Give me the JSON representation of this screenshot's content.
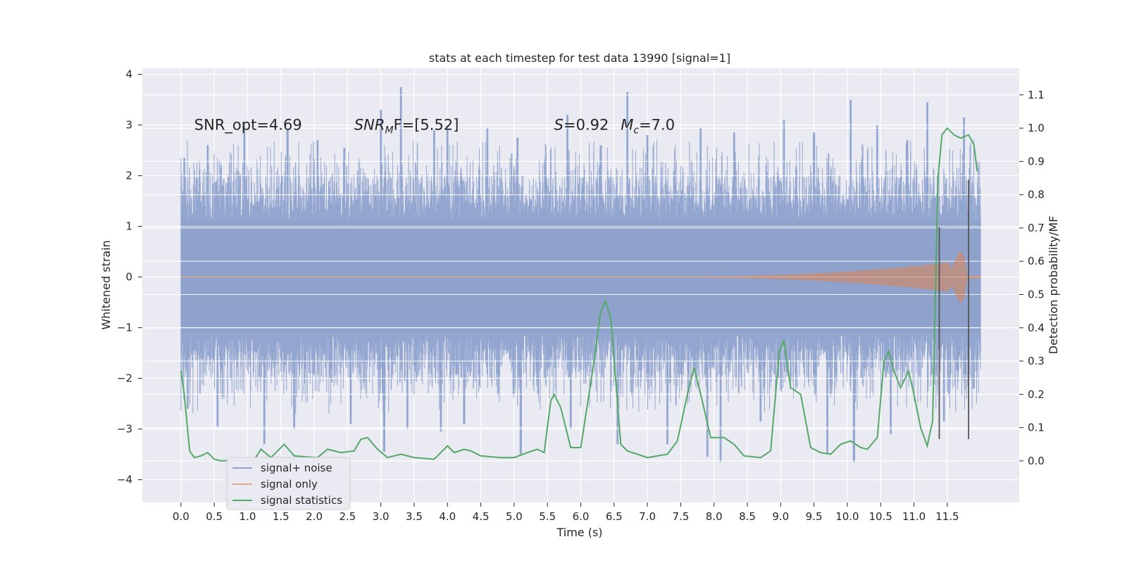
{
  "chart_data": {
    "type": "line",
    "title": "stats at each timestep for test data 13990 [signal=1]",
    "xlabel": "Time (s)",
    "ylabel": "Whitened strain",
    "ylabel_right": "Detection probability/MF",
    "xlim": [
      -0.58,
      12.58
    ],
    "ylim": [
      -4.45,
      4.12
    ],
    "ylim_right": [
      -0.125,
      1.18
    ],
    "x_ticks": [
      0.0,
      0.5,
      1.0,
      1.5,
      2.0,
      2.5,
      3.0,
      3.5,
      4.0,
      4.5,
      5.0,
      5.5,
      6.0,
      6.5,
      7.0,
      7.5,
      8.0,
      8.5,
      9.0,
      9.5,
      10.0,
      10.5,
      11.0,
      11.5
    ],
    "x_tick_labels": [
      "0.0",
      "0.5",
      "1.0",
      "1.5",
      "2.0",
      "2.5",
      "3.0",
      "3.5",
      "4.0",
      "4.5",
      "5.0",
      "5.5",
      "6.0",
      "6.5",
      "7.0",
      "7.5",
      "8.0",
      "8.5",
      "9.0",
      "9.5",
      "10.0",
      "10.5",
      "11.0",
      "11.5"
    ],
    "y_ticks": [
      4,
      3,
      2,
      1,
      0,
      -1,
      -2,
      -3,
      -4
    ],
    "y_tick_labels": [
      "4",
      "3",
      "2",
      "1",
      "0",
      "−1",
      "−2",
      "−3",
      "−4"
    ],
    "y_right_ticks": [
      1.1,
      1.0,
      0.9,
      0.8,
      0.7,
      0.6,
      0.5,
      0.4,
      0.3,
      0.2,
      0.1,
      0.0
    ],
    "y_right_tick_labels": [
      "1.1",
      "1.0",
      "0.9",
      "0.8",
      "0.7",
      "0.6",
      "0.5",
      "0.4",
      "0.3",
      "0.2",
      "0.1",
      "0.0"
    ],
    "duration_s": 12.0,
    "noise_envelope": {
      "name": "signal+ noise",
      "typical_abs": 1.1,
      "peaks_up": [
        [
          0.05,
          2.35
        ],
        [
          0.4,
          2.6
        ],
        [
          0.95,
          3.05
        ],
        [
          1.6,
          2.9
        ],
        [
          2.05,
          2.7
        ],
        [
          2.45,
          2.55
        ],
        [
          3.0,
          3.3
        ],
        [
          3.3,
          3.75
        ],
        [
          3.8,
          2.9
        ],
        [
          4.0,
          3.0
        ],
        [
          4.6,
          2.95
        ],
        [
          5.05,
          2.75
        ],
        [
          5.8,
          3.2
        ],
        [
          6.3,
          2.6
        ],
        [
          6.7,
          3.65
        ],
        [
          7.0,
          2.8
        ],
        [
          7.8,
          2.95
        ],
        [
          8.3,
          2.85
        ],
        [
          9.05,
          3.1
        ],
        [
          9.5,
          2.85
        ],
        [
          10.05,
          3.5
        ],
        [
          10.45,
          3.0
        ],
        [
          10.9,
          2.7
        ],
        [
          11.2,
          3.45
        ],
        [
          11.75,
          3.15
        ]
      ],
      "peaks_down": [
        [
          0.1,
          -2.6
        ],
        [
          0.55,
          -2.95
        ],
        [
          1.25,
          -3.3
        ],
        [
          1.7,
          -3.0
        ],
        [
          2.55,
          -2.9
        ],
        [
          3.05,
          -3.45
        ],
        [
          3.4,
          -3.0
        ],
        [
          3.9,
          -3.05
        ],
        [
          4.25,
          -2.9
        ],
        [
          5.1,
          -3.5
        ],
        [
          5.85,
          -3.0
        ],
        [
          6.55,
          -3.3
        ],
        [
          7.3,
          -3.3
        ],
        [
          7.9,
          -3.55
        ],
        [
          8.1,
          -3.65
        ],
        [
          8.7,
          -2.85
        ],
        [
          9.7,
          -3.5
        ],
        [
          10.1,
          -3.65
        ],
        [
          10.65,
          -3.1
        ],
        [
          11.45,
          -2.85
        ],
        [
          11.9,
          -2.2
        ]
      ],
      "color": "#8ea2cc"
    },
    "signal_only": {
      "name": "signal only",
      "start_s": 7.5,
      "peak_s": 11.7,
      "peak_amplitude": 0.55,
      "color": "#dd8452"
    },
    "signal_statistics": {
      "name": "signal statistics",
      "axis": "right",
      "color": "#55a868",
      "points": [
        [
          0.0,
          0.27
        ],
        [
          0.05,
          0.2
        ],
        [
          0.13,
          0.03
        ],
        [
          0.2,
          0.01
        ],
        [
          0.3,
          0.015
        ],
        [
          0.4,
          0.025
        ],
        [
          0.5,
          0.005
        ],
        [
          0.6,
          0.0
        ],
        [
          0.8,
          0.002
        ],
        [
          1.0,
          0.0
        ],
        [
          1.1,
          0.003
        ],
        [
          1.2,
          0.035
        ],
        [
          1.35,
          0.01
        ],
        [
          1.55,
          0.05
        ],
        [
          1.7,
          0.015
        ],
        [
          1.9,
          0.012
        ],
        [
          2.05,
          0.01
        ],
        [
          2.2,
          0.035
        ],
        [
          2.4,
          0.025
        ],
        [
          2.6,
          0.03
        ],
        [
          2.7,
          0.065
        ],
        [
          2.8,
          0.07
        ],
        [
          2.95,
          0.035
        ],
        [
          3.1,
          0.01
        ],
        [
          3.3,
          0.02
        ],
        [
          3.5,
          0.01
        ],
        [
          3.8,
          0.005
        ],
        [
          4.0,
          0.045
        ],
        [
          4.1,
          0.025
        ],
        [
          4.25,
          0.035
        ],
        [
          4.35,
          0.03
        ],
        [
          4.5,
          0.015
        ],
        [
          4.8,
          0.01
        ],
        [
          5.0,
          0.01
        ],
        [
          5.2,
          0.025
        ],
        [
          5.35,
          0.035
        ],
        [
          5.45,
          0.025
        ],
        [
          5.55,
          0.18
        ],
        [
          5.6,
          0.2
        ],
        [
          5.7,
          0.16
        ],
        [
          5.85,
          0.04
        ],
        [
          6.0,
          0.04
        ],
        [
          6.2,
          0.3
        ],
        [
          6.3,
          0.45
        ],
        [
          6.37,
          0.48
        ],
        [
          6.45,
          0.43
        ],
        [
          6.6,
          0.05
        ],
        [
          6.7,
          0.03
        ],
        [
          7.0,
          0.01
        ],
        [
          7.3,
          0.02
        ],
        [
          7.45,
          0.06
        ],
        [
          7.6,
          0.2
        ],
        [
          7.7,
          0.28
        ],
        [
          7.8,
          0.2
        ],
        [
          7.95,
          0.07
        ],
        [
          8.15,
          0.07
        ],
        [
          8.3,
          0.05
        ],
        [
          8.45,
          0.015
        ],
        [
          8.7,
          0.01
        ],
        [
          8.85,
          0.03
        ],
        [
          8.98,
          0.33
        ],
        [
          9.05,
          0.36
        ],
        [
          9.15,
          0.22
        ],
        [
          9.3,
          0.2
        ],
        [
          9.45,
          0.04
        ],
        [
          9.6,
          0.025
        ],
        [
          9.75,
          0.02
        ],
        [
          9.9,
          0.05
        ],
        [
          10.05,
          0.06
        ],
        [
          10.2,
          0.04
        ],
        [
          10.3,
          0.035
        ],
        [
          10.45,
          0.07
        ],
        [
          10.55,
          0.3
        ],
        [
          10.62,
          0.33
        ],
        [
          10.7,
          0.27
        ],
        [
          10.8,
          0.22
        ],
        [
          10.92,
          0.27
        ],
        [
          11.0,
          0.2
        ],
        [
          11.1,
          0.1
        ],
        [
          11.2,
          0.045
        ],
        [
          11.28,
          0.12
        ],
        [
          11.36,
          0.85
        ],
        [
          11.42,
          0.98
        ],
        [
          11.5,
          1.0
        ],
        [
          11.6,
          0.98
        ],
        [
          11.7,
          0.97
        ],
        [
          11.82,
          0.98
        ],
        [
          11.9,
          0.95
        ],
        [
          11.95,
          0.87
        ]
      ]
    },
    "markers": [
      {
        "x": 11.38,
        "y_top": 0.99,
        "y_bottom": -3.2
      },
      {
        "x": 11.82,
        "y_top": 1.92,
        "y_bottom": -3.2
      }
    ],
    "annotations": [
      {
        "x": 0.2,
        "y": 3.0,
        "text": "SNR_opt=4.69",
        "math": false
      },
      {
        "x": 2.6,
        "y": 3.0,
        "text": "SNR",
        "sub": "M",
        "post": "F=[5.52]",
        "math": true
      },
      {
        "x": 5.6,
        "y": 3.0,
        "text": "S",
        "post": "=0.92",
        "math": true
      },
      {
        "x": 6.6,
        "y": 3.0,
        "text": "M",
        "sub": "c",
        "post": "=7.0",
        "math": true
      }
    ],
    "legend": {
      "position": "lower-left",
      "entries": [
        {
          "label": "signal+ noise",
          "color": "#8ea2cc"
        },
        {
          "label": "signal only",
          "color": "#e8a98a"
        },
        {
          "label": "signal statistics",
          "color": "#55a868"
        }
      ]
    }
  }
}
